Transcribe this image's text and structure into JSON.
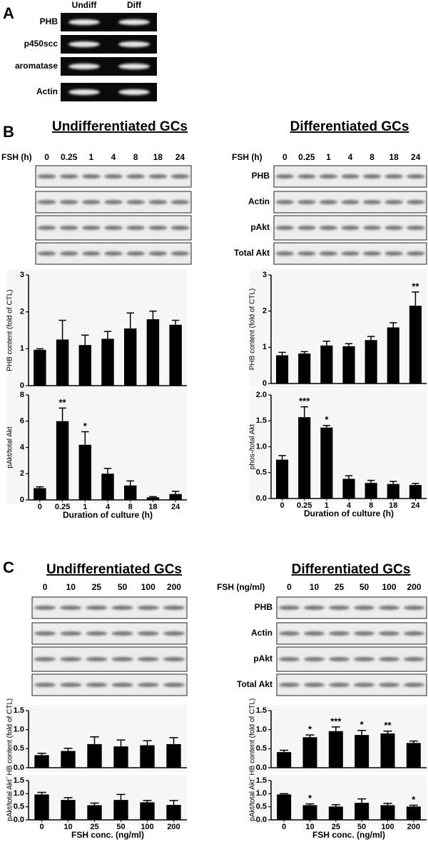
{
  "panel_a": {
    "label": "A",
    "lanes": [
      "Undiff",
      "Diff"
    ],
    "rows": [
      "PHB",
      "p450scc",
      "aromatase",
      "Actin"
    ]
  },
  "panel_b": {
    "label": "B",
    "left": {
      "title": "Undifferentiated GCs",
      "lane_axis": "FSH (h)",
      "lanes": [
        "0",
        "0.25",
        "1",
        "4",
        "8",
        "18",
        "24"
      ]
    },
    "right": {
      "title": "Differentiated GCs",
      "lane_axis": "FSH (h)",
      "lanes": [
        "0",
        "0.25",
        "1",
        "4",
        "8",
        "18",
        "24"
      ],
      "rows": [
        "PHB",
        "Actin",
        "pAkt",
        "Total Akt"
      ]
    }
  },
  "panel_c": {
    "label": "C",
    "left": {
      "title": "Undifferentiated GCs",
      "lanes": [
        "0",
        "10",
        "25",
        "50",
        "100",
        "200"
      ]
    },
    "right": {
      "title": "Differentiated GCs",
      "lane_axis": "FSH (ng/ml)",
      "lanes": [
        "0",
        "10",
        "25",
        "50",
        "100",
        "200"
      ],
      "rows": [
        "PHB",
        "Actin",
        "pAkt",
        "Total Akt"
      ]
    }
  },
  "chart_data": [
    {
      "type": "bar",
      "ylabel": "PHB content (fold of CTL)",
      "color": "#000000",
      "values": [
        0.97,
        1.25,
        1.1,
        1.27,
        1.55,
        1.8,
        1.65
      ],
      "errors": [
        0.03,
        0.52,
        0.27,
        0.2,
        0.42,
        0.22,
        0.12
      ],
      "ylim": [
        0,
        3
      ],
      "yticks": [
        0,
        1,
        2,
        3
      ]
    },
    {
      "type": "bar",
      "ylabel": "pAkt/total Akt",
      "xlabel": "Duration of culture (h)",
      "color": "#000000",
      "categories": [
        "0",
        "0.25",
        "1",
        "4",
        "8",
        "18",
        "24"
      ],
      "values": [
        0.9,
        6.0,
        4.2,
        2.0,
        1.1,
        0.2,
        0.45
      ],
      "errors": [
        0.1,
        1.0,
        1.0,
        0.4,
        0.35,
        0.05,
        0.2
      ],
      "annotations": [
        null,
        "**",
        "*",
        null,
        null,
        null,
        null
      ],
      "ylim": [
        0,
        8
      ],
      "yticks": [
        0,
        2,
        4,
        6,
        8
      ]
    },
    {
      "type": "bar",
      "ylabel": "PHB content (fold of CTL)",
      "color": "#000000",
      "values": [
        0.78,
        0.83,
        1.05,
        1.03,
        1.2,
        1.55,
        2.15
      ],
      "errors": [
        0.08,
        0.05,
        0.12,
        0.07,
        0.1,
        0.13,
        0.38
      ],
      "annotations": [
        null,
        null,
        null,
        null,
        null,
        null,
        "**"
      ],
      "ylim": [
        0,
        3
      ],
      "yticks": [
        0,
        1,
        2,
        3
      ]
    },
    {
      "type": "bar",
      "ylabel": "phos-/total Akt",
      "xlabel": "Duration of culture (h)",
      "color": "#000000",
      "categories": [
        "0",
        "0.25",
        "1",
        "4",
        "8",
        "18",
        "24"
      ],
      "values": [
        0.75,
        1.57,
        1.37,
        0.38,
        0.3,
        0.28,
        0.26
      ],
      "errors": [
        0.08,
        0.2,
        0.04,
        0.06,
        0.05,
        0.05,
        0.03
      ],
      "annotations": [
        null,
        "***",
        "*",
        null,
        null,
        null,
        null
      ],
      "ylim": [
        0,
        2
      ],
      "yticks": [
        {
          "value": 0,
          "label": "0.0"
        },
        {
          "value": 0.5,
          "label": "0.5"
        },
        {
          "value": 1,
          "label": "1.0"
        },
        {
          "value": 1.5,
          "label": "1.5"
        },
        {
          "value": 2,
          "label": "2.0"
        }
      ]
    },
    {
      "type": "bar",
      "ylabel": "PHB content (fold of CTL)",
      "color": "#000000",
      "values": [
        0.33,
        0.44,
        0.62,
        0.56,
        0.59,
        0.62
      ],
      "errors": [
        0.05,
        0.07,
        0.19,
        0.17,
        0.12,
        0.17
      ],
      "ylim": [
        0,
        1.5
      ],
      "yticks": [
        {
          "value": 0,
          "label": "0.0"
        },
        {
          "value": 0.5,
          "label": "0.5"
        },
        {
          "value": 1,
          "label": "1.0"
        },
        {
          "value": 1.5,
          "label": "1.5"
        }
      ]
    },
    {
      "type": "bar",
      "ylabel": "pAkt/total Akt",
      "xlabel": "FSH conc. (ng/ml)",
      "color": "#000000",
      "categories": [
        "0",
        "10",
        "25",
        "50",
        "100",
        "200"
      ],
      "values": [
        0.97,
        0.76,
        0.56,
        0.76,
        0.67,
        0.57
      ],
      "errors": [
        0.08,
        0.09,
        0.08,
        0.21,
        0.07,
        0.17
      ],
      "ylim": [
        0,
        1.5
      ],
      "yticks": [
        {
          "value": 0,
          "label": "0.0"
        },
        {
          "value": 0.5,
          "label": "0.5"
        },
        {
          "value": 1,
          "label": "1.0"
        },
        {
          "value": 1.5,
          "label": "1.5"
        }
      ]
    },
    {
      "type": "bar",
      "ylabel": "PHB content (fold of CTL)",
      "color": "#000000",
      "values": [
        0.41,
        0.8,
        0.96,
        0.86,
        0.9,
        0.65
      ],
      "errors": [
        0.05,
        0.06,
        0.11,
        0.12,
        0.06,
        0.05
      ],
      "annotations": [
        null,
        "*",
        "***",
        "*",
        "**",
        null
      ],
      "ylim": [
        0,
        1.5
      ],
      "yticks": [
        {
          "value": 0,
          "label": "0.0"
        },
        {
          "value": 0.5,
          "label": "0.5"
        },
        {
          "value": 1,
          "label": "1.0"
        },
        {
          "value": 1.5,
          "label": "1.5"
        }
      ]
    },
    {
      "type": "bar",
      "ylabel": "pAkt/total Akt",
      "xlabel": "FSH conc. (ng/ml)",
      "color": "#000000",
      "categories": [
        "0",
        "10",
        "25",
        "50",
        "100",
        "200"
      ],
      "values": [
        0.97,
        0.56,
        0.51,
        0.65,
        0.56,
        0.51
      ],
      "errors": [
        0.03,
        0.05,
        0.07,
        0.15,
        0.07,
        0.05
      ],
      "annotations": [
        null,
        "*",
        null,
        null,
        null,
        "*"
      ],
      "ylim": [
        0,
        1.5
      ],
      "yticks": [
        {
          "value": 0,
          "label": "0.0"
        },
        {
          "value": 0.5,
          "label": "0.5"
        },
        {
          "value": 1,
          "label": "1.0"
        },
        {
          "value": 1.5,
          "label": "1.5"
        }
      ]
    }
  ]
}
